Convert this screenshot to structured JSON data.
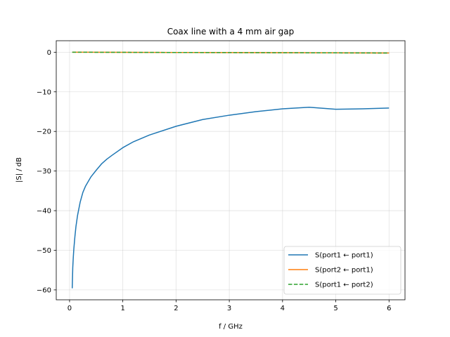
{
  "chart_data": {
    "type": "line",
    "title": "Coax line with a 4 mm air gap",
    "xlabel": "f / GHz",
    "ylabel": "|S| / dB",
    "xlim": [
      -0.25,
      6.3
    ],
    "ylim": [
      -62.5,
      2.9
    ],
    "xticks": [
      0,
      1,
      2,
      3,
      4,
      5,
      6
    ],
    "yticks": [
      0,
      -10,
      -20,
      -30,
      -40,
      -50,
      -60
    ],
    "xtick_labels": [
      "0",
      "1",
      "2",
      "3",
      "4",
      "5",
      "6"
    ],
    "ytick_labels": [
      "0",
      "−10",
      "−20",
      "−30",
      "−40",
      "−50",
      "−60"
    ],
    "grid": true,
    "legend_position": "lower-right",
    "series": [
      {
        "name": "S(port1 ← port1)",
        "color": "#1f77b4",
        "dash": "solid",
        "x": [
          0.05,
          0.06,
          0.07,
          0.08,
          0.1,
          0.12,
          0.15,
          0.2,
          0.25,
          0.3,
          0.4,
          0.5,
          0.6,
          0.7,
          0.8,
          1.0,
          1.2,
          1.5,
          2.0,
          2.5,
          3.0,
          3.5,
          4.0,
          4.5,
          5.0,
          5.5,
          6.0
        ],
        "y": [
          -59.6,
          -54.4,
          -51.8,
          -49.7,
          -46.6,
          -44.0,
          -41.2,
          -37.8,
          -35.4,
          -33.8,
          -31.5,
          -29.8,
          -28.2,
          -27.0,
          -26.0,
          -24.1,
          -22.6,
          -20.9,
          -18.7,
          -17.0,
          -15.9,
          -15.0,
          -14.3,
          -13.9,
          -14.4,
          -14.3,
          -14.1
        ]
      },
      {
        "name": "S(port2 ← port1)",
        "color": "#ff7f0e",
        "dash": "solid",
        "x": [
          0.05,
          6.0
        ],
        "y": [
          0.0,
          -0.2
        ]
      },
      {
        "name": "S(port1 ← port2)",
        "color": "#2ca02c",
        "dash": "dashed",
        "x": [
          0.05,
          6.0
        ],
        "y": [
          0.0,
          -0.2
        ]
      }
    ]
  }
}
